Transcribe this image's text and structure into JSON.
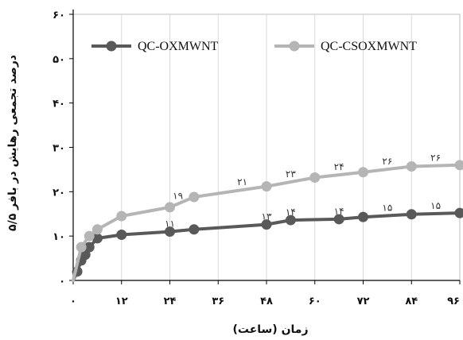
{
  "chart_data": {
    "type": "line",
    "xlabel": "زمان (ساعت)",
    "ylabel": "درصد تجمعی رهایش در بافر ۵/۵",
    "x_ticks": [
      "۰",
      "۱۲",
      "۲۴",
      "۳۶",
      "۴۸",
      "۶۰",
      "۷۲",
      "۸۴",
      "۹۶"
    ],
    "y_ticks": [
      "۰",
      "۱۰",
      "۲۰",
      "۳۰",
      "۴۰",
      "۵۰",
      "۶۰"
    ],
    "xlim": [
      0,
      96
    ],
    "ylim": [
      0,
      60
    ],
    "grid": "vertical",
    "legend_position": "top",
    "series": [
      {
        "name": "QC-OXMWNT",
        "color": "#595959",
        "x": [
          0,
          1,
          2,
          3,
          4,
          6,
          12,
          24,
          30,
          48,
          54,
          66,
          72,
          84,
          96
        ],
        "y": [
          0,
          2,
          4.5,
          5.8,
          7.5,
          9.5,
          10.3,
          11,
          11.5,
          12.6,
          13.6,
          13.8,
          14.3,
          14.9,
          15.2
        ],
        "point_labels": {
          "24": "۱۱",
          "48": "۱۳",
          "54": "۱۴",
          "66": "۱۴",
          "78": "۱۵",
          "90": "۱۵"
        }
      },
      {
        "name": "QC-CSOXMWNT",
        "color": "#b5b5b5",
        "x": [
          0,
          2,
          4,
          6,
          12,
          24,
          30,
          48,
          60,
          72,
          84,
          96
        ],
        "y": [
          0,
          7.5,
          10,
          11.5,
          14.5,
          16.5,
          18.8,
          21.2,
          23.2,
          24.4,
          25.7,
          26
        ],
        "point_labels": {
          "26": "۱۹",
          "42": "۲۱",
          "54": "۲۳",
          "66": "۲۴",
          "78": "۲۶",
          "90": "۲۶"
        }
      }
    ]
  }
}
